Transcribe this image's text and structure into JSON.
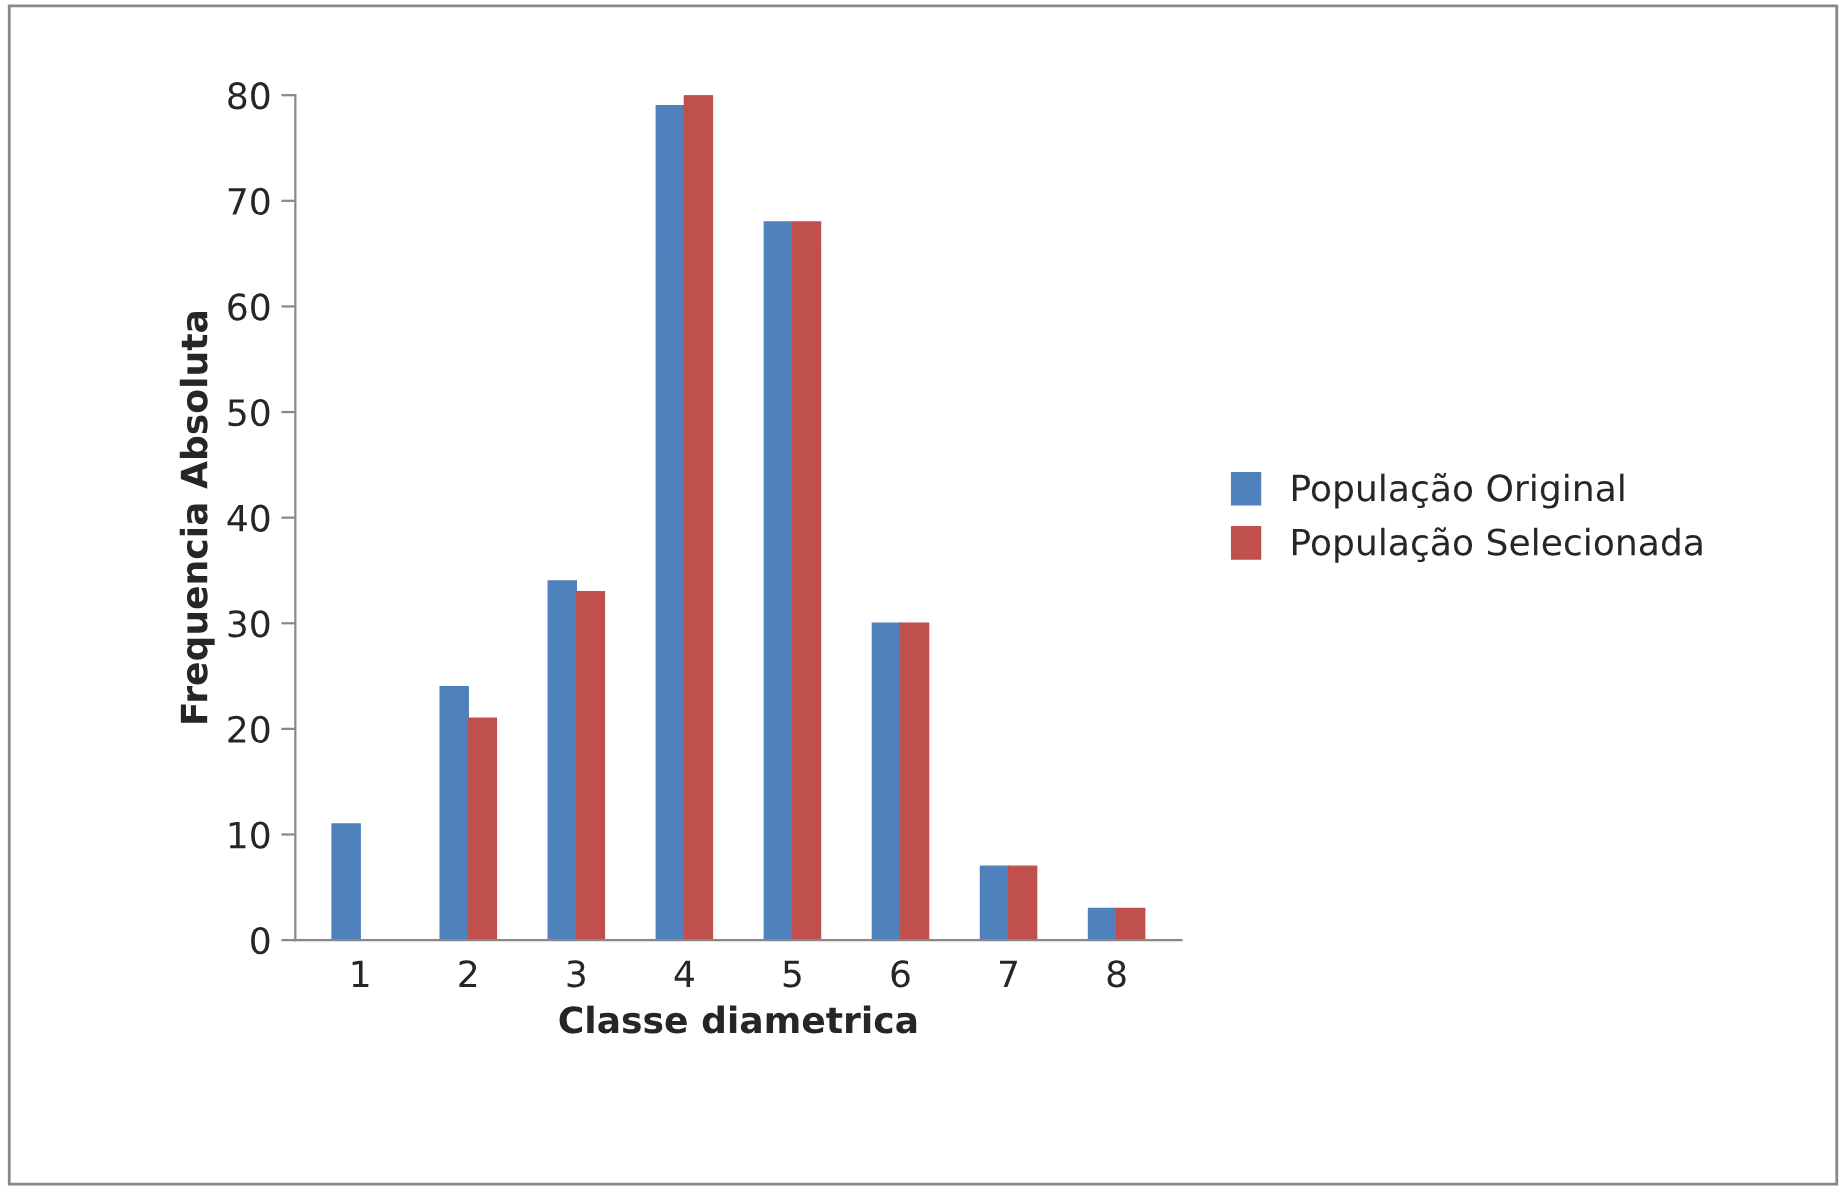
{
  "chart_data": {
    "type": "bar",
    "xlabel": "Classe diametrica",
    "ylabel": "Frequencia Absoluta",
    "categories": [
      "1",
      "2",
      "3",
      "4",
      "5",
      "6",
      "7",
      "8"
    ],
    "series": [
      {
        "name": "População Original",
        "color": "#4f81bd",
        "values": [
          11,
          24,
          34,
          79,
          68,
          30,
          7,
          3
        ]
      },
      {
        "name": "População Selecionada",
        "color": "#c0504d",
        "values": [
          0,
          21,
          33,
          80,
          68,
          30,
          7,
          3
        ]
      }
    ],
    "ylim": [
      0,
      80
    ],
    "yticks": [
      0,
      10,
      20,
      30,
      40,
      50,
      60,
      70,
      80
    ],
    "grid": false,
    "legend": "right"
  }
}
